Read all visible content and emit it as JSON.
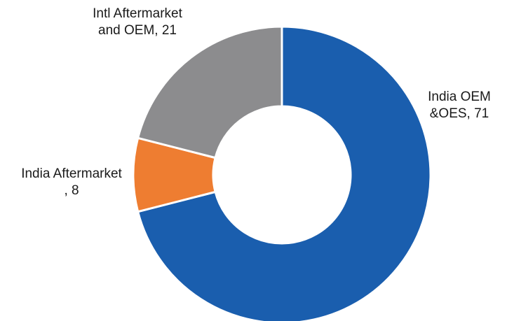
{
  "chart_data": {
    "type": "pie",
    "variant": "donut",
    "title": "",
    "start_angle_deg": 0,
    "direction": "clockwise",
    "slices": [
      {
        "label": "India OEM &OES",
        "value": 71,
        "label_lines": [
          "India OEM",
          "&OES, 71"
        ],
        "color": "#1a5eae"
      },
      {
        "label": "India Aftermarket",
        "value": 8,
        "label_lines": [
          "India Aftermarket",
          ", 8"
        ],
        "color": "#ee7d31"
      },
      {
        "label": "Intl Aftermarket and OEM",
        "value": 21,
        "label_lines": [
          "Intl Aftermarket",
          "and OEM, 21"
        ],
        "color": "#8c8c8e"
      }
    ],
    "separator_color": "#ffffff",
    "legend": "none"
  }
}
